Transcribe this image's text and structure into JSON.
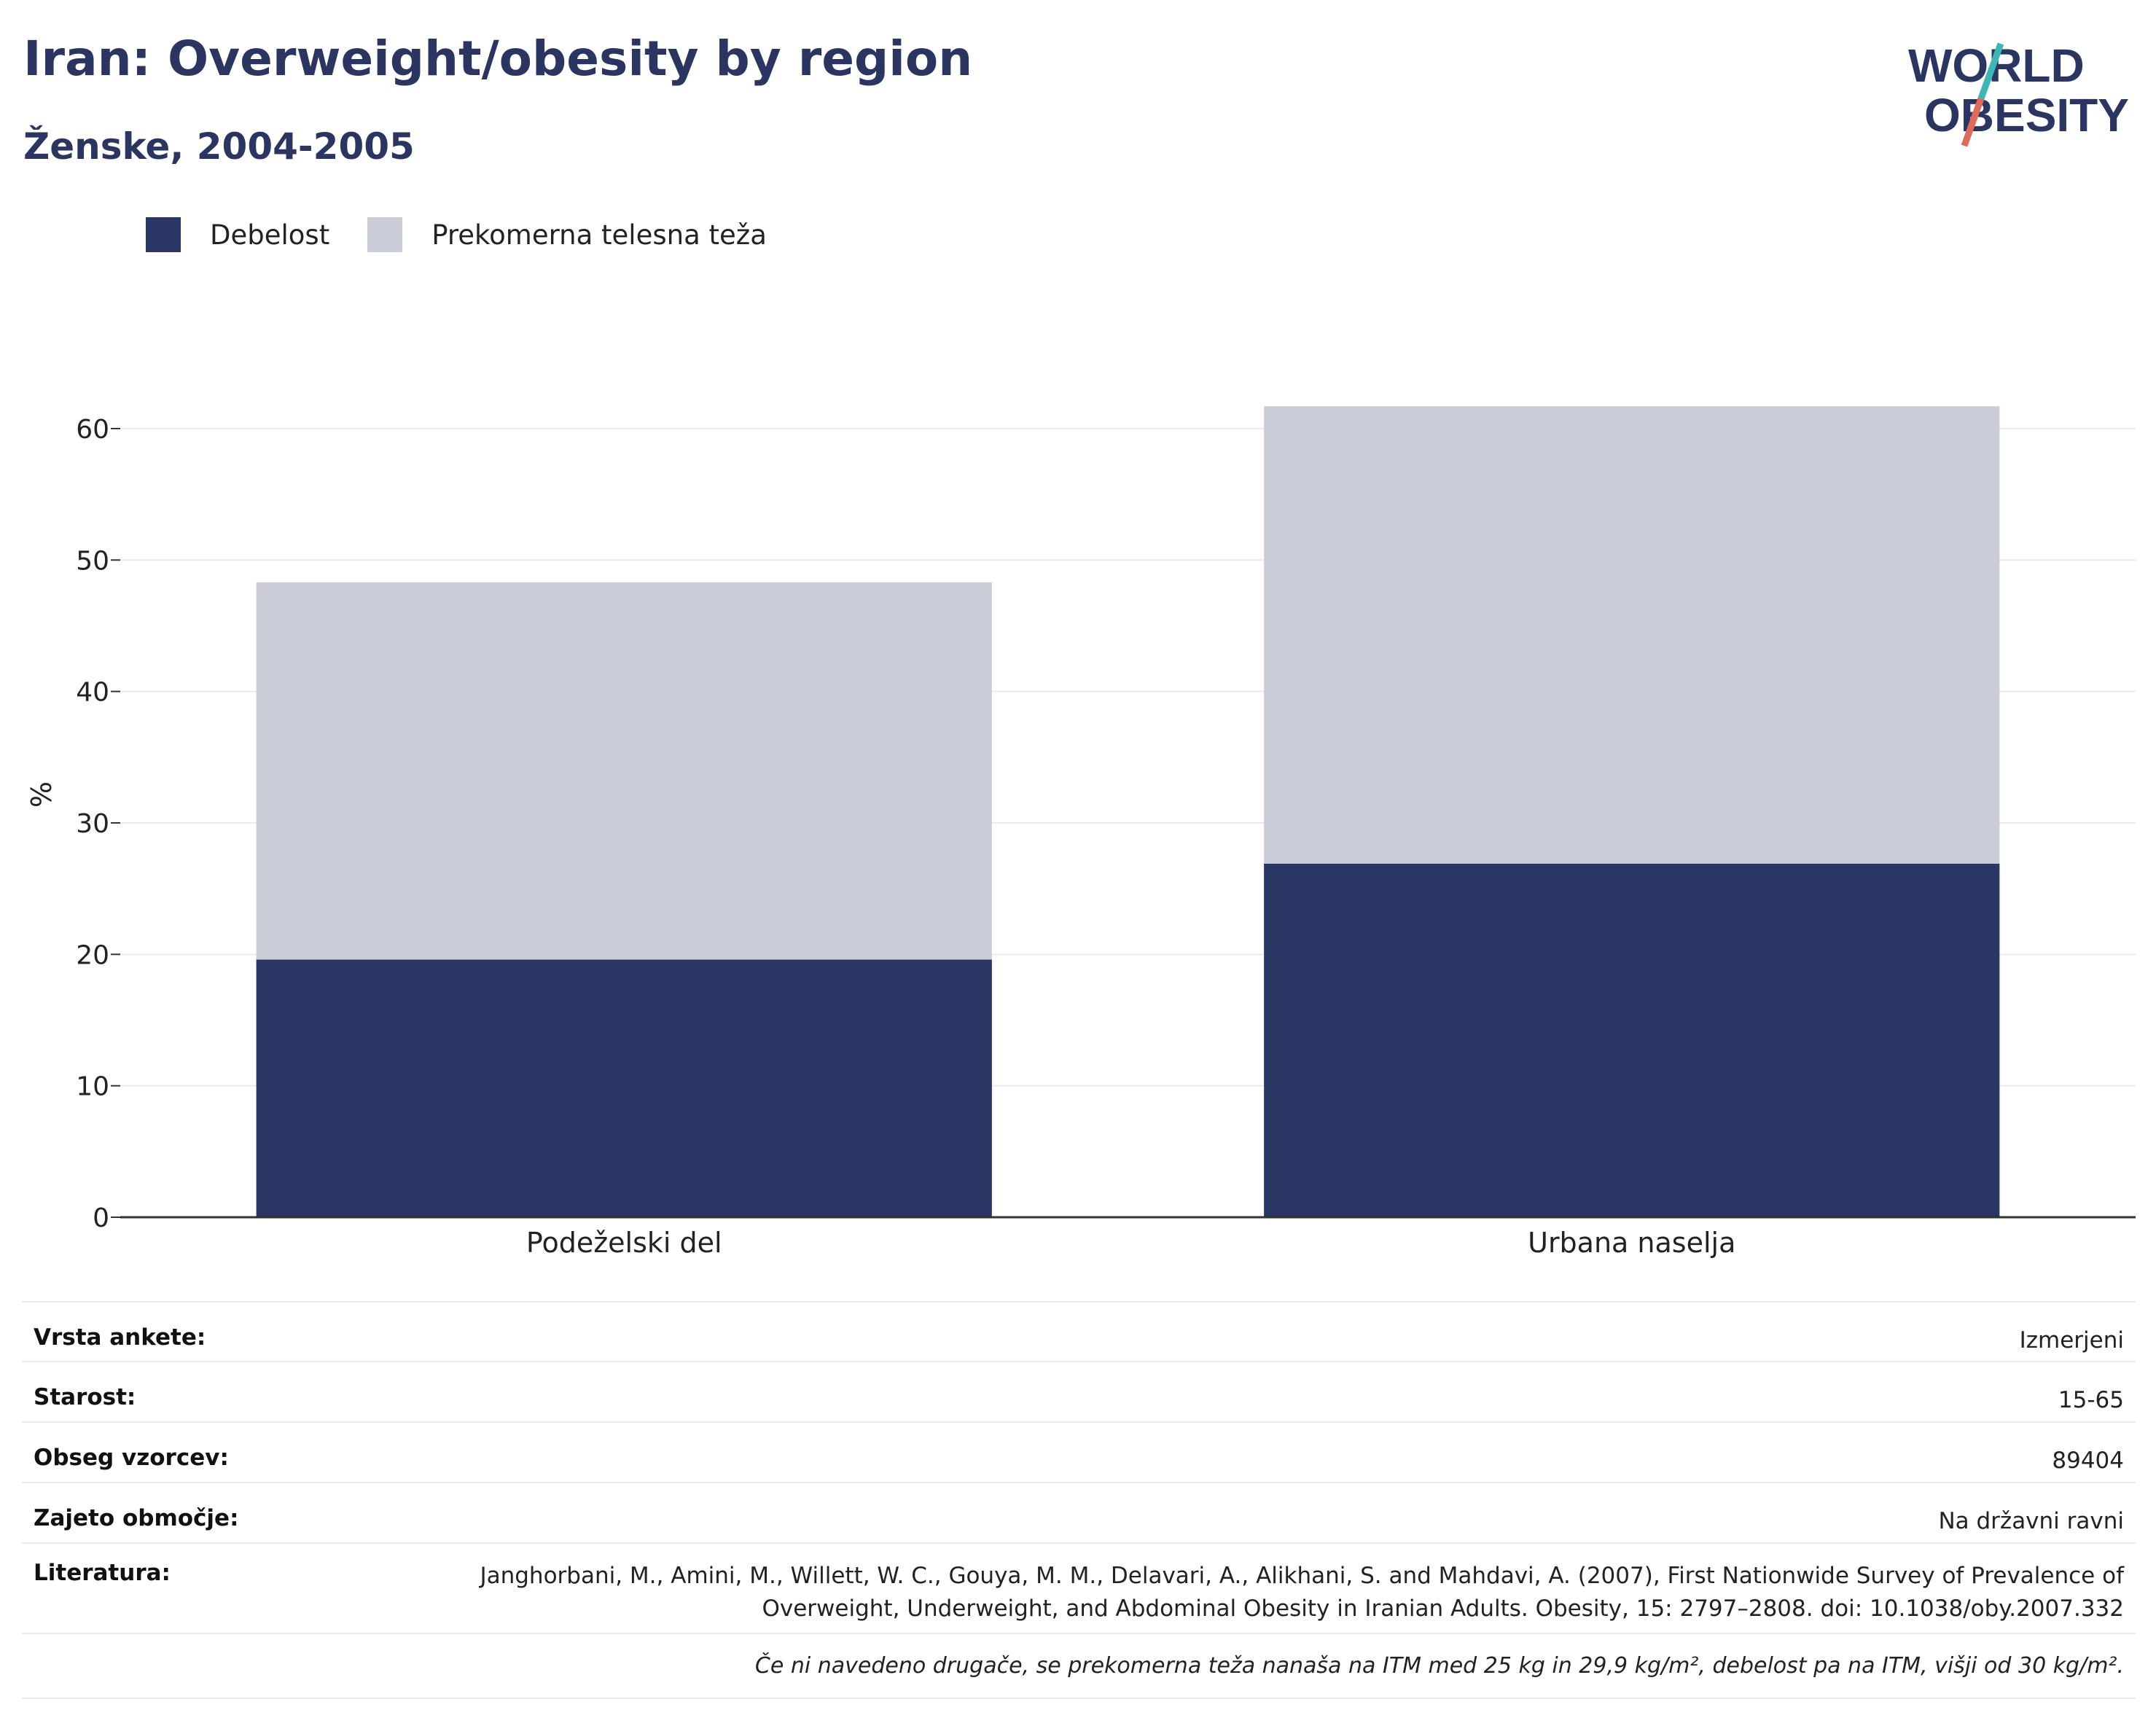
{
  "header": {
    "title": "Iran: Overweight/obesity by region",
    "subtitle": "Ženske, 2004-2005"
  },
  "logo": {
    "line1": "WORLD",
    "line2": "OBESITY",
    "icon": "world-obesity-logo"
  },
  "legend": [
    {
      "label": "Debelost",
      "color": "#2a3663"
    },
    {
      "label": "Prekomerna telesna teža",
      "color": "#cacdd8"
    }
  ],
  "chart_data": {
    "type": "bar",
    "stacked": true,
    "categories": [
      "Podeželski del",
      "Urbana naselja"
    ],
    "series": [
      {
        "name": "Debelost",
        "values": [
          19.6,
          26.9
        ],
        "color": "#2a3663"
      },
      {
        "name": "Prekomerna telesna teža",
        "values": [
          28.7,
          34.8
        ],
        "color": "#cacdd8"
      }
    ],
    "ylabel": "%",
    "ylim": [
      0,
      65
    ],
    "yticks": [
      0,
      10,
      20,
      30,
      40,
      50,
      60
    ],
    "grid": true,
    "legend_position": "top-left"
  },
  "info": {
    "rows": [
      {
        "key": "Vrsta ankete:",
        "value": "Izmerjeni"
      },
      {
        "key": "Starost:",
        "value": "15-65"
      },
      {
        "key": "Obseg vzorcev:",
        "value": "89404"
      },
      {
        "key": "Zajeto območje:",
        "value": "Na državni ravni"
      },
      {
        "key": "Literatura:",
        "value": "Janghorbani, M., Amini, M., Willett, W. C., Gouya, M. M., Delavari, A., Alikhani, S. and Mahdavi, A. (2007), First Nationwide Survey of Prevalence of Overweight, Underweight, and Abdominal Obesity in Iranian Adults. Obesity, 15: 2797–2808. doi: 10.1038/oby.2007.332"
      }
    ],
    "note": "Če ni navedeno drugače, se prekomerna teža nanaša na ITM med 25 kg in 29,9 kg/m², debelost pa na ITM, višji od 30 kg/m²."
  }
}
